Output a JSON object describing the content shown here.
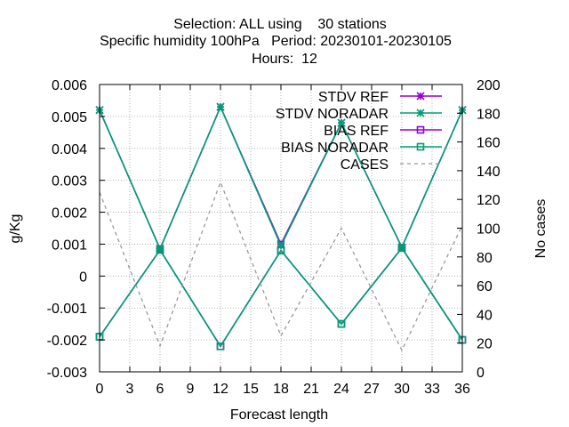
{
  "chart_data": {
    "type": "line",
    "title_lines": [
      "Selection: ALL using    30 stations",
      "Specific humidity 100hPa   Period: 20230101-20230105",
      "Hours:  12"
    ],
    "xlabel": "Forecast length",
    "ylabel": "g/Kg",
    "y2label": "No cases",
    "xlim": [
      0,
      36
    ],
    "ylim": [
      -0.003,
      0.006
    ],
    "y2lim": [
      0,
      200
    ],
    "xticks": [
      0,
      3,
      6,
      9,
      12,
      15,
      18,
      21,
      24,
      27,
      30,
      33,
      36
    ],
    "yticks": [
      -0.003,
      -0.002,
      -0.001,
      0,
      0.001,
      0.002,
      0.003,
      0.004,
      0.005,
      0.006
    ],
    "y2ticks": [
      0,
      20,
      40,
      60,
      80,
      100,
      120,
      140,
      160,
      180,
      200
    ],
    "ytick_labels": [
      "-0.003",
      "-0.002",
      "-0.001",
      "0",
      "0.001",
      "0.002",
      "0.003",
      "0.004",
      "0.005",
      "0.006"
    ],
    "grid": true,
    "legend_position": "top-right",
    "x": [
      0,
      6,
      12,
      18,
      24,
      30,
      36
    ],
    "series": [
      {
        "name": "STDV REF",
        "axis": "y",
        "color": "#9400d3",
        "marker": "star",
        "dash": "solid",
        "values": [
          0.0052,
          0.00085,
          0.0053,
          0.001,
          0.0048,
          0.0009,
          0.0052
        ]
      },
      {
        "name": "STDV NORADAR",
        "axis": "y",
        "color": "#009e73",
        "marker": "star",
        "dash": "solid",
        "values": [
          0.0052,
          0.00085,
          0.0053,
          0.00095,
          0.0048,
          0.0009,
          0.0052
        ]
      },
      {
        "name": "BIAS REF",
        "axis": "y",
        "color": "#9400d3",
        "marker": "square",
        "dash": "solid",
        "values": [
          -0.0019,
          0.00082,
          -0.0022,
          0.0008,
          -0.0015,
          0.00088,
          -0.002
        ]
      },
      {
        "name": "BIAS NORADAR",
        "axis": "y",
        "color": "#009e73",
        "marker": "square",
        "dash": "solid",
        "values": [
          -0.0019,
          0.00082,
          -0.0022,
          0.0008,
          -0.0015,
          0.00088,
          -0.002
        ]
      },
      {
        "name": "CASES",
        "axis": "y2",
        "color": "#999999",
        "marker": "none",
        "dash": "dashed",
        "values": [
          125,
          18,
          132,
          25,
          100,
          15,
          102
        ]
      }
    ]
  }
}
